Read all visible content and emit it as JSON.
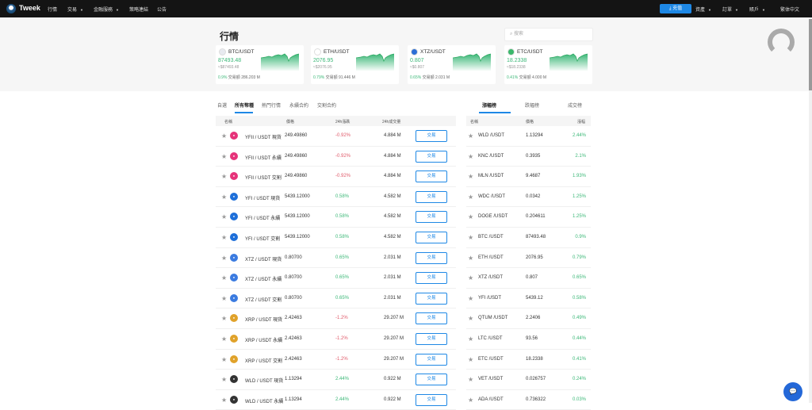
{
  "topbar": {
    "brand": "Tweek",
    "nav": [
      {
        "label": "行情",
        "dropdown": false
      },
      {
        "label": "交易",
        "dropdown": true
      },
      {
        "label": "金融服務",
        "dropdown": true
      },
      {
        "label": "策略連結",
        "dropdown": false
      },
      {
        "label": "公告",
        "dropdown": false
      }
    ],
    "deposit_label": "充值",
    "right": [
      {
        "label": "資產",
        "dropdown": true
      },
      {
        "label": "訂單",
        "dropdown": true
      },
      {
        "label": "賬戶",
        "dropdown": true
      }
    ],
    "language": "繁体中文"
  },
  "hero": {
    "title": "行情",
    "search_placeholder": "搜索",
    "cards": [
      {
        "pair": "BTC/USDT",
        "price": "87493.48",
        "usd": "≈$87493.48",
        "change": "0.9%",
        "volume_label": "交易額",
        "volume": "286.203 M",
        "icon_color": "#e8eaf0"
      },
      {
        "pair": "ETH/USDT",
        "price": "2076.95",
        "usd": "≈$2076.95",
        "change": "0.79%",
        "volume_label": "交易額",
        "volume": "91.446 M",
        "icon_color": "#ffffff"
      },
      {
        "pair": "XTZ/USDT",
        "price": "0.807",
        "usd": "≈$0.807",
        "change": "0.65%",
        "volume_label": "交易額",
        "volume": "2.031 M",
        "icon_color": "#2c6fd6"
      },
      {
        "pair": "ETC/USDT",
        "price": "18.2338",
        "usd": "≈$18.2338",
        "change": "0.41%",
        "volume_label": "交易額",
        "volume": "4.000 M",
        "icon_color": "#3ab86b"
      }
    ]
  },
  "market": {
    "tabs": [
      "自選",
      "所有幣種",
      "熱門行情",
      "永續合約",
      "交割合約"
    ],
    "active_tab": 1,
    "headers": [
      "名稱",
      "價格",
      "24h漲跌",
      "24h成交量"
    ],
    "trade_label": "交易",
    "rows": [
      {
        "pair": "YFII / USDT 現貨",
        "price": "249.49860",
        "change": "-0.92%",
        "volume": "4.884 M",
        "color": "#e6337a",
        "sym": "YFII"
      },
      {
        "pair": "YFII / USDT 永續",
        "price": "249.49860",
        "change": "-0.92%",
        "volume": "4.884 M",
        "color": "#e6337a",
        "sym": "YFII"
      },
      {
        "pair": "YFII / USDT 交割",
        "price": "249.49860",
        "change": "-0.92%",
        "volume": "4.884 M",
        "color": "#e6337a",
        "sym": "YFII"
      },
      {
        "pair": "YFI / USDT 現貨",
        "price": "5439.12000",
        "change": "0.58%",
        "volume": "4.582 M",
        "color": "#1e6fd9",
        "sym": "YFI"
      },
      {
        "pair": "YFI / USDT 永續",
        "price": "5439.12000",
        "change": "0.58%",
        "volume": "4.582 M",
        "color": "#1e6fd9",
        "sym": "YFI"
      },
      {
        "pair": "YFI / USDT 交割",
        "price": "5439.12000",
        "change": "0.58%",
        "volume": "4.582 M",
        "color": "#1e6fd9",
        "sym": "YFI"
      },
      {
        "pair": "XTZ / USDT 現貨",
        "price": "0.80700",
        "change": "0.65%",
        "volume": "2.031 M",
        "color": "#3b7be0",
        "sym": "XTZ"
      },
      {
        "pair": "XTZ / USDT 永續",
        "price": "0.80700",
        "change": "0.65%",
        "volume": "2.031 M",
        "color": "#3b7be0",
        "sym": "XTZ"
      },
      {
        "pair": "XTZ / USDT 交割",
        "price": "0.80700",
        "change": "0.65%",
        "volume": "2.031 M",
        "color": "#3b7be0",
        "sym": "XTZ"
      },
      {
        "pair": "XRP / USDT 現貨",
        "price": "2.42463",
        "change": "-1.2%",
        "volume": "29.207 M",
        "color": "#e0a22a",
        "sym": "XRP"
      },
      {
        "pair": "XRP / USDT 永續",
        "price": "2.42463",
        "change": "-1.2%",
        "volume": "29.207 M",
        "color": "#e0a22a",
        "sym": "XRP"
      },
      {
        "pair": "XRP / USDT 交割",
        "price": "2.42463",
        "change": "-1.2%",
        "volume": "29.207 M",
        "color": "#e0a22a",
        "sym": "XRP"
      },
      {
        "pair": "WLD / USDT 現貨",
        "price": "1.13294",
        "change": "2.44%",
        "volume": "0.922 M",
        "color": "#333333",
        "sym": "WLD"
      },
      {
        "pair": "WLD / USDT 永續",
        "price": "1.13294",
        "change": "2.44%",
        "volume": "0.922 M",
        "color": "#333333",
        "sym": "WLD"
      }
    ]
  },
  "ranking": {
    "tabs": [
      "漲幅榜",
      "跌幅榜",
      "成交榜"
    ],
    "active_tab": 0,
    "headers": [
      "名稱",
      "價格",
      "漲幅"
    ],
    "rows": [
      {
        "pair": "WLD /USDT",
        "price": "1.13294",
        "change": "2.44%"
      },
      {
        "pair": "KNC /USDT",
        "price": "0.3935",
        "change": "2.1%"
      },
      {
        "pair": "MLN /USDT",
        "price": "9.4687",
        "change": "1.93%"
      },
      {
        "pair": "WDC /USDT",
        "price": "0.0342",
        "change": "1.25%"
      },
      {
        "pair": "DOGE /USDT",
        "price": "0.204611",
        "change": "1.25%"
      },
      {
        "pair": "BTC /USDT",
        "price": "87493.48",
        "change": "0.9%"
      },
      {
        "pair": "ETH /USDT",
        "price": "2076.95",
        "change": "0.79%"
      },
      {
        "pair": "XTZ /USDT",
        "price": "0.807",
        "change": "0.65%"
      },
      {
        "pair": "YFI /USDT",
        "price": "5439.12",
        "change": "0.58%"
      },
      {
        "pair": "QTUM /USDT",
        "price": "2.2406",
        "change": "0.49%"
      },
      {
        "pair": "LTC /USDT",
        "price": "93.56",
        "change": "0.44%"
      },
      {
        "pair": "ETC /USDT",
        "price": "18.2338",
        "change": "0.41%"
      },
      {
        "pair": "VET /USDT",
        "price": "0.026757",
        "change": "0.24%"
      },
      {
        "pair": "ADA /USDT",
        "price": "0.736322",
        "change": "0.03%"
      }
    ]
  },
  "colors": {
    "accent": "#1e88e5",
    "up": "#3cb878",
    "down": "#e05a6a",
    "topbar": "#141414"
  }
}
